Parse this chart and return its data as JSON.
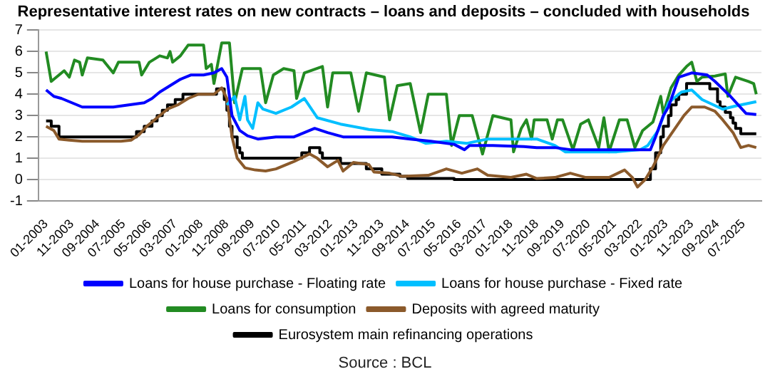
{
  "chart_data": {
    "type": "line",
    "title": "Representative interest rates on new contracts – loans and deposits – concluded with households",
    "annotations": [
      "Source : BCL"
    ],
    "xlim": [
      "2002-10",
      "2026-02"
    ],
    "ylim": [
      -1,
      7
    ],
    "yticks": [
      -1,
      0,
      1,
      2,
      3,
      4,
      5,
      6,
      7
    ],
    "xticks": [
      {
        "value": "2003-01",
        "label": "01-2003"
      },
      {
        "value": "2003-11",
        "label": "11-2003"
      },
      {
        "value": "2004-09",
        "label": "09-2004"
      },
      {
        "value": "2005-07",
        "label": "07-2005"
      },
      {
        "value": "2006-05",
        "label": "05-2006"
      },
      {
        "value": "2007-03",
        "label": "03-2007"
      },
      {
        "value": "2008-01",
        "label": "01-2008"
      },
      {
        "value": "2008-11",
        "label": "11-2008"
      },
      {
        "value": "2009-09",
        "label": "09-2009"
      },
      {
        "value": "2010-07",
        "label": "07-2010"
      },
      {
        "value": "2011-05",
        "label": "05-2011"
      },
      {
        "value": "2012-03",
        "label": "03-2012"
      },
      {
        "value": "2013-01",
        "label": "01-2013"
      },
      {
        "value": "2013-11",
        "label": "11-2013"
      },
      {
        "value": "2014-09",
        "label": "09-2014"
      },
      {
        "value": "2015-07",
        "label": "07-2015"
      },
      {
        "value": "2016-05",
        "label": "05-2016"
      },
      {
        "value": "2017-03",
        "label": "03-2017"
      },
      {
        "value": "2018-01",
        "label": "01-2018"
      },
      {
        "value": "2018-11",
        "label": "11-2018"
      },
      {
        "value": "2019-09",
        "label": "09-2019"
      },
      {
        "value": "2020-07",
        "label": "07-2020"
      },
      {
        "value": "2021-05",
        "label": "05-2021"
      },
      {
        "value": "2022-03",
        "label": "03-2022"
      },
      {
        "value": "2023-01",
        "label": "01-2023"
      },
      {
        "value": "2023-11",
        "label": "11-2023"
      },
      {
        "value": "2024-09",
        "label": "09-2024"
      },
      {
        "value": "2025-07",
        "label": "07-2025"
      }
    ],
    "grid": "y",
    "legend": "bottom",
    "marker": "none",
    "line_style": "solid",
    "series": [
      {
        "name": "Loans for house purchase - Floating rate",
        "color": "#0000ff",
        "x": [
          "2003-01",
          "2003-04",
          "2003-07",
          "2003-11",
          "2004-03",
          "2004-09",
          "2005-03",
          "2005-09",
          "2006-03",
          "2006-06",
          "2006-09",
          "2007-01",
          "2007-05",
          "2007-09",
          "2008-02",
          "2008-06",
          "2008-09",
          "2008-11",
          "2009-01",
          "2009-04",
          "2009-07",
          "2009-11",
          "2010-06",
          "2011-01",
          "2011-05",
          "2011-09",
          "2012-02",
          "2012-08",
          "2013-06",
          "2014-03",
          "2014-10",
          "2015-06",
          "2016-03",
          "2016-07",
          "2016-09",
          "2017-06",
          "2018-06",
          "2018-11",
          "2019-06",
          "2019-12",
          "2021-01",
          "2022-07",
          "2022-09",
          "2022-12",
          "2023-02",
          "2023-06",
          "2023-11",
          "2024-05",
          "2024-08",
          "2025-02",
          "2025-08",
          "2025-12"
        ],
        "values": [
          4.2,
          3.9,
          3.8,
          3.6,
          3.4,
          3.4,
          3.4,
          3.5,
          3.6,
          3.8,
          4.1,
          4.4,
          4.7,
          4.9,
          4.9,
          5.0,
          5.2,
          4.8,
          3.0,
          2.3,
          2.05,
          1.9,
          2.0,
          2.0,
          2.2,
          2.4,
          2.2,
          2.0,
          2.0,
          2.0,
          1.9,
          1.8,
          1.65,
          1.4,
          1.6,
          1.6,
          1.55,
          1.5,
          1.5,
          1.4,
          1.4,
          1.4,
          2.0,
          3.0,
          3.4,
          4.8,
          5.0,
          4.9,
          4.6,
          3.9,
          3.1,
          3.05
        ]
      },
      {
        "name": "Loans for house purchase - Fixed rate",
        "color": "#00bfff",
        "x": [
          "2008-11",
          "2009-02",
          "2009-04",
          "2009-06",
          "2009-07",
          "2009-09",
          "2009-11",
          "2010-01",
          "2010-06",
          "2010-12",
          "2011-05",
          "2011-10",
          "2012-07",
          "2013-06",
          "2014-03",
          "2014-10",
          "2015-04",
          "2015-12",
          "2016-08",
          "2017-04",
          "2018-11",
          "2019-06",
          "2019-10",
          "2021-06",
          "2022-03",
          "2022-06",
          "2022-10",
          "2023-02",
          "2023-07",
          "2023-11",
          "2024-03",
          "2024-11",
          "2025-04",
          "2025-12"
        ],
        "values": [
          3.5,
          3.9,
          2.8,
          3.9,
          2.8,
          2.4,
          3.6,
          3.3,
          3.1,
          3.4,
          3.8,
          2.9,
          2.6,
          2.35,
          2.25,
          2.0,
          1.7,
          1.8,
          1.7,
          1.9,
          1.9,
          1.6,
          1.3,
          1.3,
          1.4,
          1.6,
          2.3,
          3.6,
          4.1,
          4.2,
          3.75,
          3.3,
          3.45,
          3.65
        ]
      },
      {
        "name": "Loans for consumption",
        "color": "#228b22",
        "x": [
          "2003-01",
          "2003-03",
          "2003-08",
          "2003-10",
          "2003-12",
          "2004-02",
          "2004-03",
          "2004-05",
          "2004-11",
          "2005-03",
          "2005-05",
          "2006-01",
          "2006-02",
          "2006-05",
          "2006-09",
          "2006-12",
          "2007-01",
          "2007-02",
          "2007-05",
          "2007-08",
          "2008-02",
          "2008-03",
          "2008-05",
          "2008-06",
          "2008-09",
          "2008-12",
          "2009-01",
          "2009-02",
          "2009-05",
          "2009-12",
          "2010-02",
          "2010-05",
          "2010-09",
          "2011-01",
          "2011-02",
          "2011-05",
          "2011-12",
          "2012-02",
          "2012-04",
          "2012-11",
          "2013-02",
          "2013-05",
          "2013-12",
          "2014-02",
          "2014-05",
          "2014-10",
          "2015-02",
          "2015-05",
          "2015-12",
          "2016-02",
          "2016-05",
          "2016-10",
          "2017-02",
          "2017-06",
          "2018-01",
          "2018-02",
          "2018-05",
          "2018-07",
          "2018-09",
          "2018-10",
          "2019-03",
          "2019-05",
          "2019-07",
          "2019-09",
          "2020-01",
          "2020-04",
          "2020-07",
          "2020-11",
          "2021-01",
          "2021-03",
          "2021-07",
          "2021-10",
          "2022-01",
          "2022-04",
          "2022-08",
          "2022-11",
          "2022-12",
          "2023-03",
          "2023-06",
          "2023-09",
          "2023-11",
          "2024-01",
          "2024-03",
          "2024-08",
          "2024-12",
          "2025-01",
          "2025-04",
          "2025-09",
          "2025-11",
          "2025-12"
        ],
        "values": [
          6.0,
          4.6,
          5.1,
          4.8,
          5.6,
          5.5,
          4.9,
          5.7,
          5.6,
          5.0,
          5.5,
          5.5,
          4.9,
          5.5,
          5.8,
          5.7,
          6.0,
          5.5,
          5.8,
          6.3,
          6.3,
          5.2,
          5.4,
          4.5,
          6.4,
          6.4,
          5.0,
          3.6,
          5.2,
          5.2,
          3.6,
          4.9,
          5.2,
          5.1,
          3.8,
          5.0,
          5.3,
          3.4,
          5.0,
          5.0,
          3.2,
          5.0,
          4.8,
          2.8,
          4.4,
          4.5,
          2.2,
          4.0,
          4.0,
          1.6,
          3.0,
          3.0,
          1.2,
          3.0,
          2.8,
          1.3,
          2.4,
          2.8,
          1.9,
          2.8,
          2.8,
          1.9,
          2.8,
          2.8,
          1.4,
          2.6,
          2.8,
          1.5,
          2.9,
          1.3,
          2.8,
          2.8,
          1.5,
          2.3,
          2.7,
          3.9,
          3.1,
          4.3,
          4.9,
          5.3,
          5.5,
          4.6,
          4.8,
          4.85,
          4.95,
          3.9,
          4.8,
          4.6,
          4.5,
          4.0
        ]
      },
      {
        "name": "Deposits with agreed maturity",
        "color": "#8b5a2b",
        "x": [
          "2003-01",
          "2003-04",
          "2003-06",
          "2003-10",
          "2004-03",
          "2005-06",
          "2005-10",
          "2006-01",
          "2006-04",
          "2006-08",
          "2006-12",
          "2007-04",
          "2007-08",
          "2007-12",
          "2008-06",
          "2008-09",
          "2008-11",
          "2009-01",
          "2009-03",
          "2009-06",
          "2009-10",
          "2010-02",
          "2010-06",
          "2011-01",
          "2011-07",
          "2011-10",
          "2012-02",
          "2012-06",
          "2012-08",
          "2012-12",
          "2013-06",
          "2013-08",
          "2014-02",
          "2014-07",
          "2015-05",
          "2015-12",
          "2016-06",
          "2016-12",
          "2017-04",
          "2018-01",
          "2018-05",
          "2018-07",
          "2018-11",
          "2019-06",
          "2019-12",
          "2020-06",
          "2021-03",
          "2021-09",
          "2021-12",
          "2022-02",
          "2022-05",
          "2022-08",
          "2022-12",
          "2023-04",
          "2023-08",
          "2023-11",
          "2024-04",
          "2024-08",
          "2024-11",
          "2025-03",
          "2025-06",
          "2025-09",
          "2025-12"
        ],
        "values": [
          2.5,
          2.3,
          1.9,
          1.85,
          1.8,
          1.8,
          1.85,
          2.1,
          2.5,
          2.9,
          3.3,
          3.5,
          3.8,
          4.0,
          4.0,
          4.3,
          3.8,
          2.0,
          1.0,
          0.55,
          0.45,
          0.4,
          0.5,
          0.85,
          1.2,
          1.0,
          0.6,
          0.9,
          0.4,
          0.8,
          0.7,
          0.35,
          0.3,
          0.15,
          0.2,
          0.5,
          0.3,
          0.5,
          0.2,
          0.1,
          0.2,
          0.25,
          0.05,
          0.1,
          0.3,
          0.1,
          0.1,
          0.45,
          0.1,
          -0.35,
          0.0,
          0.6,
          1.6,
          2.3,
          3.0,
          3.4,
          3.4,
          3.2,
          2.8,
          2.2,
          1.5,
          1.6,
          1.5
        ]
      },
      {
        "name": "Eurosystem main refinancing operations",
        "color": "#000000",
        "type": "step",
        "x": [
          "2003-01",
          "2003-03",
          "2003-06",
          "2005-12",
          "2006-03",
          "2006-06",
          "2006-08",
          "2006-10",
          "2006-12",
          "2007-03",
          "2007-06",
          "2008-07",
          "2008-10",
          "2008-11",
          "2008-12",
          "2009-01",
          "2009-03",
          "2009-04",
          "2009-05",
          "2011-04",
          "2011-07",
          "2011-11",
          "2011-12",
          "2012-07",
          "2013-05",
          "2013-11",
          "2014-06",
          "2014-09",
          "2016-03",
          "2022-07",
          "2022-09",
          "2022-11",
          "2022-12",
          "2023-02",
          "2023-03",
          "2023-05",
          "2023-06",
          "2023-09",
          "2024-06",
          "2024-09",
          "2024-10",
          "2024-12",
          "2025-02",
          "2025-03",
          "2025-04",
          "2025-06",
          "2025-12"
        ],
        "values": [
          2.75,
          2.5,
          2.0,
          2.25,
          2.5,
          2.75,
          3.0,
          3.25,
          3.5,
          3.75,
          4.0,
          4.25,
          3.75,
          3.25,
          2.5,
          2.0,
          1.5,
          1.25,
          1.0,
          1.25,
          1.5,
          1.25,
          1.0,
          0.75,
          0.5,
          0.25,
          0.15,
          0.05,
          0.0,
          0.5,
          1.25,
          2.0,
          2.5,
          3.0,
          3.5,
          3.75,
          4.0,
          4.5,
          4.25,
          3.65,
          3.4,
          3.15,
          2.9,
          2.65,
          2.4,
          2.15,
          2.15
        ]
      }
    ]
  }
}
